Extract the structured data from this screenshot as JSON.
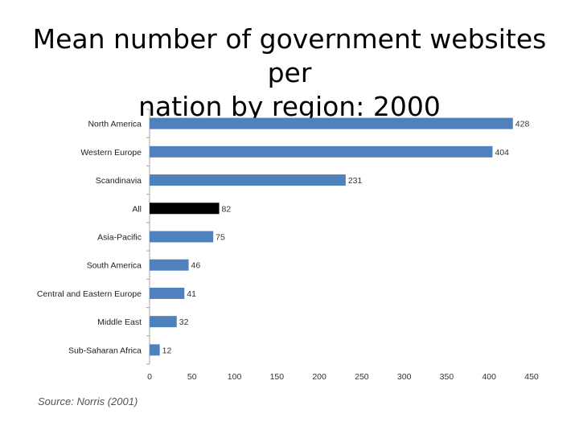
{
  "title_lines": [
    "Mean number of government websites per",
    "nation by region: 2000"
  ],
  "source": {
    "label": "Source:",
    "text": "Norris (2001)"
  },
  "chart_data": {
    "type": "bar",
    "orientation": "horizontal",
    "title": "Mean number of government websites per nation by region: 2000",
    "categories": [
      "North America",
      "Western Europe",
      "Scandinavia",
      "All",
      "Asia-Pacific",
      "South America",
      "Central and Eastern Europe",
      "Middle East",
      "Sub-Saharan Africa"
    ],
    "values": [
      428,
      404,
      231,
      82,
      75,
      46,
      41,
      32,
      12
    ],
    "value_labels": [
      "428",
      "404",
      "231",
      "82",
      "75",
      "46",
      "41",
      "32",
      "12"
    ],
    "highlight_category": "All",
    "xlim": [
      0,
      450
    ],
    "xticks": [
      "0",
      "50",
      "100",
      "150",
      "200",
      "250",
      "300",
      "350",
      "400",
      "450"
    ],
    "grid": false,
    "legend": "none",
    "bar_color": "#4F81BD",
    "highlight_color": "#000000"
  }
}
